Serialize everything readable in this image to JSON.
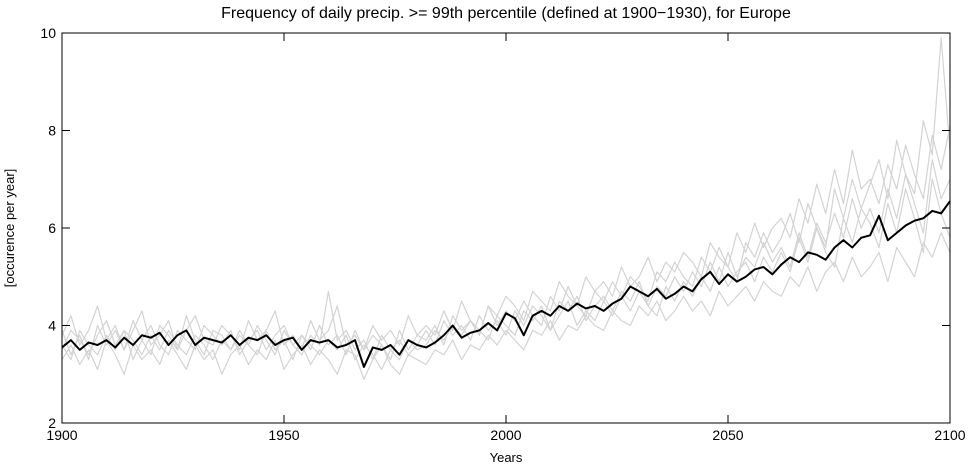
{
  "chart_data": {
    "type": "line",
    "title": "Frequency of daily precip. >= 99th percentile (defined at 1900−1930), for Europe",
    "x_label": "Years",
    "y_label": "[occurence per year]",
    "xlim": [
      1900,
      2100
    ],
    "xticks": [
      1900,
      1950,
      2000,
      2050,
      2100
    ],
    "ylim": [
      2,
      10
    ],
    "yticks": [
      2,
      4,
      6,
      8,
      10
    ],
    "grid": false,
    "x": [
      1900,
      1902,
      1904,
      1906,
      1908,
      1910,
      1912,
      1914,
      1916,
      1918,
      1920,
      1922,
      1924,
      1926,
      1928,
      1930,
      1932,
      1934,
      1936,
      1938,
      1940,
      1942,
      1944,
      1946,
      1948,
      1950,
      1952,
      1954,
      1956,
      1958,
      1960,
      1962,
      1964,
      1966,
      1968,
      1970,
      1972,
      1974,
      1976,
      1978,
      1980,
      1982,
      1984,
      1986,
      1988,
      1990,
      1992,
      1994,
      1996,
      1998,
      2000,
      2002,
      2004,
      2006,
      2008,
      2010,
      2012,
      2014,
      2016,
      2018,
      2020,
      2022,
      2024,
      2026,
      2028,
      2030,
      2032,
      2034,
      2036,
      2038,
      2040,
      2042,
      2044,
      2046,
      2048,
      2050,
      2052,
      2054,
      2056,
      2058,
      2060,
      2062,
      2064,
      2066,
      2068,
      2070,
      2072,
      2074,
      2076,
      2078,
      2080,
      2082,
      2084,
      2086,
      2088,
      2090,
      2092,
      2094,
      2096,
      2098,
      2100
    ],
    "series": [
      {
        "color": "#d3d3d3",
        "values": [
          3.9,
          3.4,
          3.8,
          3.3,
          4.0,
          3.6,
          3.9,
          3.5,
          4.1,
          3.7,
          3.4,
          4.0,
          3.8,
          3.5,
          4.2,
          3.7,
          3.4,
          3.9,
          3.8,
          3.5,
          3.9,
          3.6,
          4.0,
          3.7,
          3.4,
          3.9,
          3.6,
          3.8,
          3.5,
          4.0,
          3.6,
          3.8,
          3.4,
          3.9,
          3.5,
          3.8,
          3.6,
          3.3,
          3.9,
          3.5,
          3.8,
          3.7,
          4.0,
          3.6,
          4.2,
          3.9,
          4.1,
          3.8,
          4.4,
          4.0,
          4.3,
          4.1,
          4.5,
          4.2,
          4.0,
          4.6,
          4.3,
          4.8,
          4.4,
          4.2,
          4.7,
          4.5,
          4.9,
          4.6,
          5.0,
          4.8,
          4.5,
          5.1,
          4.9,
          5.3,
          5.0,
          4.8,
          5.4,
          5.1,
          5.6,
          5.2,
          4.9,
          5.7,
          5.4,
          5.9,
          5.5,
          5.8,
          6.3,
          5.7,
          6.5,
          6.0,
          5.6,
          6.8,
          6.2,
          7.0,
          6.4,
          6.9,
          7.4,
          6.6,
          7.8,
          7.1,
          6.7,
          8.2,
          7.5,
          9.9,
          7.6
        ]
      },
      {
        "color": "#d3d3d3",
        "values": [
          3.3,
          3.6,
          3.2,
          3.5,
          3.1,
          3.7,
          3.4,
          3.0,
          3.6,
          3.3,
          3.5,
          3.2,
          3.7,
          3.4,
          3.1,
          3.6,
          3.3,
          3.5,
          3.0,
          3.4,
          3.6,
          3.2,
          3.5,
          3.3,
          3.7,
          3.1,
          3.4,
          3.6,
          3.2,
          3.5,
          3.3,
          3.0,
          3.5,
          3.4,
          2.9,
          3.3,
          3.6,
          3.2,
          3.0,
          3.4,
          3.3,
          3.2,
          3.5,
          3.4,
          3.7,
          3.3,
          3.6,
          3.5,
          3.8,
          3.6,
          3.9,
          3.7,
          3.5,
          3.9,
          3.8,
          4.1,
          3.7,
          4.0,
          3.9,
          4.2,
          4.0,
          3.9,
          4.3,
          4.1,
          4.0,
          4.4,
          4.2,
          4.5,
          4.1,
          4.3,
          4.6,
          4.3,
          4.5,
          4.2,
          4.7,
          4.4,
          4.6,
          4.8,
          4.5,
          4.9,
          4.7,
          4.6,
          5.0,
          4.8,
          5.2,
          4.7,
          5.1,
          5.3,
          4.9,
          5.4,
          5.0,
          5.2,
          5.5,
          4.9,
          5.6,
          5.3,
          5.0,
          5.7,
          5.4,
          5.9,
          5.5
        ]
      },
      {
        "color": "#d3d3d3",
        "values": [
          3.8,
          4.2,
          3.6,
          3.9,
          4.4,
          3.7,
          4.0,
          3.5,
          3.9,
          4.3,
          3.6,
          3.8,
          4.1,
          3.5,
          3.9,
          4.2,
          3.7,
          3.6,
          4.0,
          3.8,
          3.5,
          4.1,
          3.7,
          3.9,
          4.3,
          3.6,
          3.8,
          3.5,
          4.1,
          3.7,
          3.9,
          4.4,
          3.6,
          3.8,
          3.5,
          4.0,
          3.7,
          3.9,
          3.6,
          4.2,
          3.8,
          4.0,
          3.8,
          4.3,
          3.9,
          4.5,
          4.1,
          3.8,
          4.4,
          4.2,
          4.6,
          4.4,
          4.1,
          4.7,
          4.5,
          4.3,
          4.9,
          4.6,
          4.4,
          5.0,
          4.7,
          4.9,
          4.6,
          5.2,
          4.8,
          5.0,
          5.4,
          4.9,
          5.3,
          5.1,
          5.5,
          5.3,
          5.0,
          5.7,
          5.4,
          5.2,
          5.9,
          5.5,
          6.1,
          5.6,
          6.0,
          6.2,
          5.8,
          6.6,
          6.1,
          6.9,
          6.3,
          7.2,
          6.5,
          7.6,
          6.8,
          7.0,
          6.5,
          7.3,
          6.8,
          7.7,
          7.1,
          6.6,
          7.9,
          7.2,
          8.1
        ]
      },
      {
        "color": "#d3d3d3",
        "values": [
          3.5,
          3.9,
          3.7,
          3.4,
          3.8,
          4.1,
          3.6,
          3.9,
          3.3,
          3.7,
          4.0,
          3.6,
          3.4,
          3.9,
          3.7,
          3.5,
          4.0,
          3.8,
          3.6,
          3.9,
          3.4,
          3.7,
          3.9,
          3.5,
          3.8,
          4.0,
          3.6,
          3.4,
          3.8,
          3.6,
          4.7,
          3.7,
          3.9,
          3.5,
          3.7,
          3.3,
          3.8,
          3.5,
          3.7,
          3.4,
          3.6,
          3.9,
          3.6,
          4.1,
          3.8,
          4.0,
          3.7,
          4.2,
          3.9,
          4.1,
          3.8,
          4.3,
          4.0,
          4.4,
          4.2,
          3.9,
          4.5,
          4.3,
          4.6,
          4.1,
          4.4,
          4.6,
          4.3,
          4.7,
          4.5,
          4.9,
          4.4,
          4.8,
          4.6,
          5.0,
          4.7,
          5.1,
          4.8,
          5.3,
          4.9,
          5.5,
          5.0,
          5.4,
          5.2,
          5.7,
          5.3,
          5.6,
          5.2,
          5.9,
          5.4,
          6.1,
          5.7,
          6.3,
          5.8,
          6.6,
          6.0,
          6.4,
          5.9,
          6.8,
          6.2,
          7.1,
          6.5,
          5.9,
          7.4,
          6.6,
          7.0
        ]
      },
      {
        "color": "#d3d3d3",
        "values": [
          3.6,
          3.3,
          3.9,
          3.6,
          3.4,
          3.8,
          3.5,
          3.9,
          3.7,
          3.4,
          3.8,
          3.5,
          3.9,
          3.6,
          3.4,
          3.8,
          3.6,
          3.3,
          3.7,
          3.5,
          3.8,
          3.6,
          3.4,
          3.9,
          3.5,
          3.7,
          3.3,
          3.8,
          3.6,
          3.4,
          3.7,
          3.5,
          3.8,
          3.3,
          3.6,
          3.4,
          3.1,
          3.5,
          3.3,
          3.7,
          3.5,
          3.6,
          3.9,
          3.7,
          4.0,
          3.8,
          4.1,
          3.9,
          3.7,
          4.2,
          4.0,
          3.8,
          4.3,
          4.1,
          4.4,
          3.9,
          4.2,
          4.5,
          4.0,
          4.3,
          4.1,
          4.5,
          4.2,
          4.6,
          4.3,
          4.7,
          4.4,
          4.2,
          4.8,
          4.5,
          4.9,
          4.6,
          5.0,
          4.7,
          5.2,
          4.8,
          5.1,
          5.3,
          4.9,
          5.4,
          5.1,
          5.5,
          5.1,
          5.8,
          5.3,
          6.0,
          5.5,
          5.2,
          6.2,
          5.7,
          6.4,
          6.1,
          5.6,
          6.5,
          5.9,
          6.8,
          6.2,
          5.5,
          7.0,
          6.3,
          5.8
        ]
      },
      {
        "color": "#000000",
        "values": [
          3.55,
          3.7,
          3.5,
          3.65,
          3.6,
          3.7,
          3.55,
          3.75,
          3.6,
          3.8,
          3.75,
          3.85,
          3.6,
          3.8,
          3.9,
          3.6,
          3.75,
          3.7,
          3.65,
          3.8,
          3.6,
          3.75,
          3.7,
          3.8,
          3.6,
          3.7,
          3.75,
          3.5,
          3.7,
          3.65,
          3.7,
          3.55,
          3.6,
          3.7,
          3.15,
          3.55,
          3.5,
          3.6,
          3.4,
          3.7,
          3.6,
          3.55,
          3.65,
          3.8,
          4.0,
          3.75,
          3.85,
          3.9,
          4.05,
          3.9,
          4.25,
          4.15,
          3.8,
          4.2,
          4.3,
          4.2,
          4.4,
          4.3,
          4.45,
          4.35,
          4.4,
          4.3,
          4.45,
          4.55,
          4.8,
          4.7,
          4.6,
          4.75,
          4.55,
          4.65,
          4.8,
          4.7,
          4.95,
          5.1,
          4.85,
          5.05,
          4.9,
          5.0,
          5.15,
          5.2,
          5.05,
          5.25,
          5.4,
          5.3,
          5.5,
          5.45,
          5.35,
          5.6,
          5.75,
          5.6,
          5.8,
          5.85,
          6.25,
          5.75,
          5.9,
          6.05,
          6.15,
          6.2,
          6.35,
          6.3,
          6.55
        ]
      }
    ]
  }
}
